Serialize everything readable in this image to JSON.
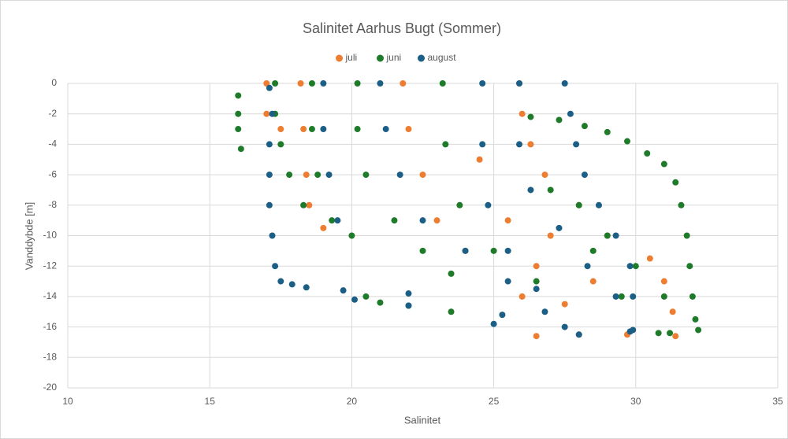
{
  "chart_data": {
    "type": "scatter",
    "title": "Salinitet Aarhus Bugt (Sommer)",
    "x_label": "Salinitet",
    "y_label": "Vanddybde [m]",
    "xlim": [
      10,
      35
    ],
    "xticks": [
      10,
      15,
      20,
      25,
      30,
      35
    ],
    "ylim": [
      -20,
      0
    ],
    "yticks": [
      0,
      -2,
      -4,
      -6,
      -8,
      -10,
      -12,
      -14,
      -16,
      -18,
      -20
    ],
    "grid": true,
    "legend": "top",
    "series": [
      {
        "name": "juli",
        "color": "#ed7d31",
        "x": [
          17,
          17,
          17.5,
          18.2,
          18.3,
          18.4,
          18.5,
          19,
          21.8,
          22,
          22.5,
          23,
          24,
          25.9,
          26,
          26.3,
          26.8,
          28,
          29,
          30.5,
          31,
          31.3,
          31.4,
          24.5,
          25.5,
          26.5,
          27.5,
          28,
          27,
          28.5,
          29.7,
          26,
          26.5
        ],
        "values": [
          0,
          -2,
          -3,
          0,
          -3,
          -6,
          -8,
          -9.5,
          0,
          -3,
          -6,
          -9,
          -11,
          0,
          -2,
          -4,
          -6,
          -8,
          -10,
          -11.5,
          -13,
          -15,
          -16.6,
          -5,
          -9,
          -12,
          -14.5,
          -16.5,
          -10,
          -13,
          -16.5,
          -14,
          -16.6
        ]
      },
      {
        "name": "juni",
        "color": "#1e7b2a",
        "x": [
          16,
          16,
          16,
          16.1,
          17.3,
          17.3,
          17.5,
          17.8,
          18.3,
          18.6,
          18.6,
          18.8,
          19.3,
          20,
          20.2,
          20.2,
          20.5,
          21.5,
          22.5,
          23.5,
          23.2,
          23.3,
          23.8,
          25,
          26.5,
          26.3,
          27.3,
          28.2,
          29,
          29.7,
          30.4,
          31,
          31.4,
          31.6,
          31.8,
          31.9,
          32,
          32.1,
          32.2,
          28,
          29,
          30,
          31,
          31.2,
          27,
          28.5,
          29.5,
          30.8,
          20.5,
          21,
          22,
          23.5
        ],
        "values": [
          -0.8,
          -2,
          -3,
          -4.3,
          0,
          -2,
          -4,
          -6,
          -8,
          0,
          -3,
          -6,
          -9,
          -10,
          0,
          -3,
          -6,
          -9,
          -11,
          -12.5,
          0,
          -4,
          -8,
          -11,
          -13,
          -2.2,
          -2.4,
          -2.8,
          -3.2,
          -3.8,
          -4.6,
          -5.3,
          -6.5,
          -8,
          -10,
          -12,
          -14,
          -15.5,
          -16.2,
          -8,
          -10,
          -12,
          -14,
          -16.4,
          -7,
          -11,
          -14,
          -16.4,
          -14,
          -14.4,
          -14.6,
          -15
        ]
      },
      {
        "name": "august",
        "color": "#1b5e86",
        "x": [
          17.1,
          17.2,
          17.1,
          17.1,
          17.1,
          17.2,
          17.3,
          17.5,
          17.9,
          18.4,
          19.7,
          20.1,
          22,
          22,
          19,
          19,
          19.2,
          19.5,
          21,
          21.2,
          21.7,
          22.5,
          24,
          25.5,
          26.8,
          24.6,
          24.6,
          24.8,
          25.5,
          26.5,
          27.5,
          25.9,
          25.9,
          26.3,
          27.3,
          28.3,
          29.3,
          29.8,
          27.5,
          27.7,
          27.9,
          28.2,
          28.7,
          29.3,
          29.8,
          29.9,
          29.9,
          25.3,
          25,
          28
        ],
        "values": [
          -0.3,
          -2,
          -4,
          -6,
          -8,
          -10,
          -12,
          -13,
          -13.2,
          -13.4,
          -13.6,
          -14.2,
          -13.8,
          -14.6,
          0,
          -3,
          -6,
          -9,
          0,
          -3,
          -6,
          -9,
          -11,
          -13,
          -15,
          0,
          -4,
          -8,
          -11,
          -13.5,
          -16,
          0,
          -4,
          -7,
          -9.5,
          -12,
          -14,
          -16.3,
          0,
          -2,
          -4,
          -6,
          -8,
          -10,
          -12,
          -14,
          -16.2,
          -15.2,
          -15.8,
          -16.5
        ]
      }
    ]
  }
}
